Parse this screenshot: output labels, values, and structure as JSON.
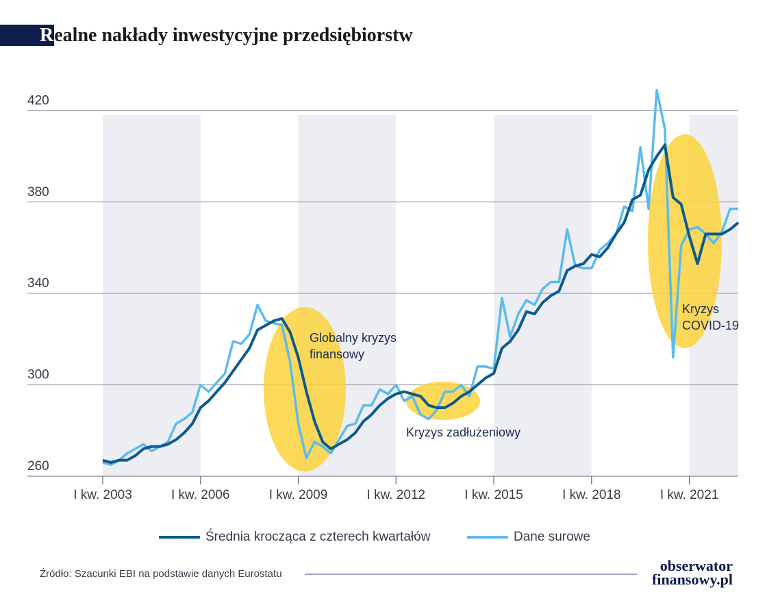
{
  "chart_data": {
    "type": "line",
    "title": "Realne nakłady inwestycyjne przedsiębiorstw",
    "categories": [
      "I kw. 2003",
      null,
      null,
      null,
      null,
      null,
      null,
      null,
      null,
      null,
      null,
      null,
      "I kw. 2006",
      null,
      null,
      null,
      null,
      null,
      null,
      null,
      null,
      null,
      null,
      null,
      "I kw. 2009",
      null,
      null,
      null,
      null,
      null,
      null,
      null,
      null,
      null,
      null,
      null,
      "I kw. 2012",
      null,
      null,
      null,
      null,
      null,
      null,
      null,
      null,
      null,
      null,
      null,
      "I kw. 2015",
      null,
      null,
      null,
      null,
      null,
      null,
      null,
      null,
      null,
      null,
      null,
      "I kw. 2018",
      null,
      null,
      null,
      null,
      null,
      null,
      null,
      null,
      null,
      null,
      null,
      "I kw. 2021",
      null,
      null,
      null,
      null,
      null,
      null
    ],
    "series": [
      {
        "name": "Średnia krocząca z czterech kwartałów",
        "color": "#0d5a8f",
        "values": [
          267,
          266,
          267,
          267,
          269,
          272,
          273,
          273,
          274,
          276,
          279,
          283,
          290,
          293,
          297,
          301,
          306,
          311,
          316,
          324,
          326,
          328,
          329,
          323,
          312,
          297,
          284,
          275,
          272,
          274,
          276,
          279,
          284,
          287,
          291,
          294,
          296,
          297,
          296,
          295,
          291,
          290,
          290,
          292,
          295,
          297,
          300,
          303,
          305,
          316,
          319,
          324,
          332,
          331,
          336,
          339,
          341,
          350,
          352,
          353,
          357,
          356,
          360,
          366,
          371,
          381,
          383,
          394,
          400,
          405,
          382,
          379,
          365,
          353,
          366,
          366,
          366,
          368,
          371
        ]
      },
      {
        "name": "Dane surowe",
        "color": "#5bbbec",
        "values": [
          266,
          265,
          267,
          270,
          272,
          274,
          271,
          273,
          275,
          283,
          285,
          288,
          300,
          297,
          301,
          305,
          319,
          318,
          322,
          335,
          328,
          327,
          326,
          310,
          283,
          268,
          275,
          273,
          270,
          276,
          282,
          283,
          291,
          291,
          298,
          296,
          300,
          293,
          295,
          287,
          285,
          289,
          297,
          297,
          300,
          295,
          308,
          308,
          307,
          338,
          321,
          331,
          337,
          335,
          342,
          345,
          345,
          368,
          352,
          351,
          351,
          359,
          362,
          366,
          378,
          376,
          404,
          377,
          429,
          412,
          312,
          361,
          368,
          369,
          366,
          362,
          367,
          377,
          377
        ]
      }
    ],
    "ylim": [
      260,
      430
    ],
    "yticks": [
      260,
      300,
      340,
      380,
      420
    ],
    "grid": true,
    "annotations": [
      [
        "Globalny kryzys",
        "finansowy"
      ],
      [
        "Kryzys zadłużeniowy"
      ],
      [
        "Kryzys",
        "COVID-19"
      ]
    ],
    "source": "Źródło: Szacunki EBI na podstawie danych Eurostatu",
    "logo": [
      "obserwator",
      "finansowy.pl"
    ]
  }
}
